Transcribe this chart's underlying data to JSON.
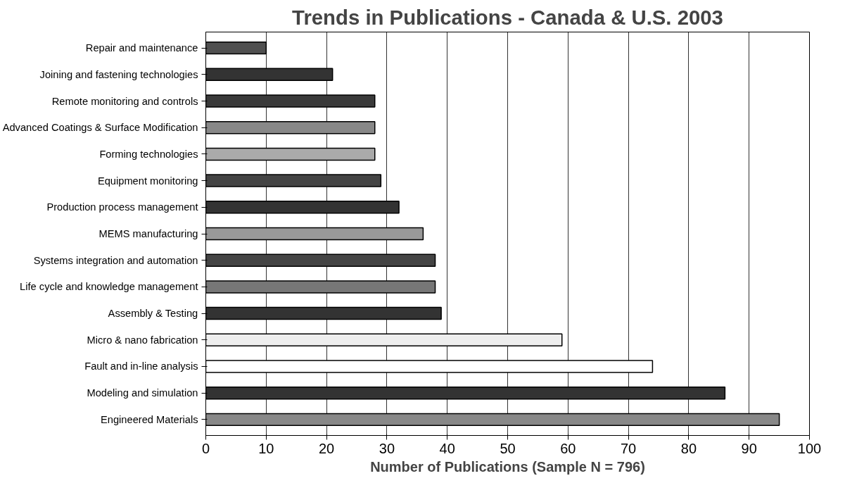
{
  "chart_data": {
    "type": "bar",
    "orientation": "horizontal",
    "title": "Trends in Publications - Canada & U.S. 2003",
    "xlabel": "Number of Publications (Sample N = 796)",
    "categories": [
      "Repair and maintenance",
      "Joining and fastening technologies",
      "Remote monitoring and controls",
      "Advanced Coatings & Surface Modification",
      "Forming technologies",
      "Equipment monitoring",
      "Production process management",
      "MEMS manufacturing",
      "Systems integration and automation",
      "Life cycle and knowledge management",
      "Assembly & Testing",
      "Micro & nano fabrication",
      "Fault and in-line analysis",
      "Modeling and simulation",
      "Engineered Materials"
    ],
    "values": [
      10,
      21,
      28,
      28,
      28,
      29,
      32,
      36,
      38,
      38,
      39,
      59,
      74,
      86,
      95
    ],
    "colors": [
      "#505050",
      "#333333",
      "#3a3a3a",
      "#888888",
      "#aaaaaa",
      "#444444",
      "#333333",
      "#999999",
      "#444444",
      "#777777",
      "#333333",
      "#eeeeee",
      "#ffffff",
      "#333333",
      "#888888"
    ],
    "xlim": [
      0,
      100
    ],
    "xticks": [
      0,
      10,
      20,
      30,
      40,
      50,
      60,
      70,
      80,
      90,
      100
    ],
    "grid": "x"
  }
}
